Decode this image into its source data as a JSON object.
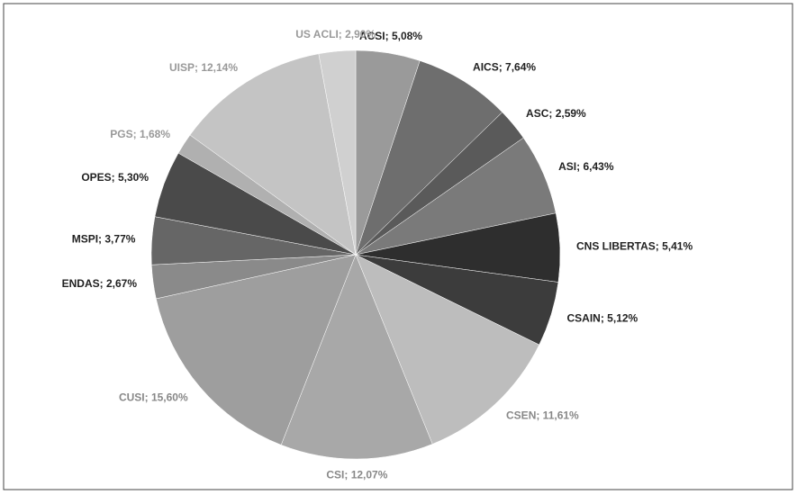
{
  "chart_data": {
    "type": "pie",
    "values": [
      5.08,
      7.64,
      2.59,
      6.43,
      5.41,
      5.12,
      11.61,
      12.07,
      15.6,
      2.67,
      3.77,
      5.3,
      1.68,
      12.14,
      2.9
    ],
    "value_labels": [
      "ACSI; 5,08%",
      "AICS; 7,64%",
      "ASC; 2,59%",
      "ASI; 6,43%",
      "CNS LIBERTAS; 5,41%",
      "CSAIN; 5,12%",
      "CSEN; 11,61%",
      "CSI; 12,07%",
      "CUSI; 15,60%",
      "ENDAS; 2,67%",
      "MSPI; 3,77%",
      "OPES; 5,30%",
      "PGS; 1,68%",
      "UISP; 12,14%",
      "US ACLI; 2,90%"
    ],
    "colors": [
      "#9a9a9a",
      "#6e6e6e",
      "#5a5a5a",
      "#7a7a7a",
      "#2e2e2e",
      "#3c3c3c",
      "#bdbdbd",
      "#a8a8a8",
      "#9e9e9e",
      "#8a8a8a",
      "#666666",
      "#4a4a4a",
      "#b0b0b0",
      "#c4c4c4",
      "#d0d0d0"
    ],
    "label_colors": [
      "#222",
      "#222",
      "#222",
      "#222",
      "#222",
      "#222",
      "#888",
      "#888",
      "#888",
      "#222",
      "#222",
      "#222",
      "#999",
      "#999",
      "#999"
    ]
  }
}
